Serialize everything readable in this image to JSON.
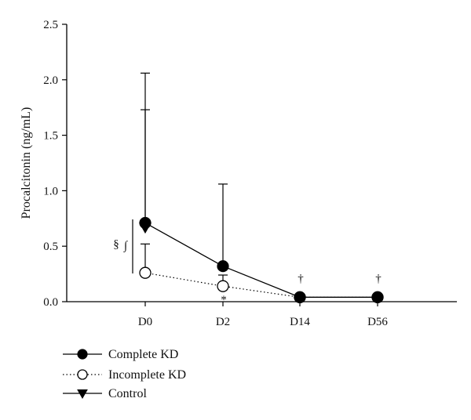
{
  "chart_data": {
    "type": "line",
    "title": "",
    "xlabel": "",
    "ylabel": "Procalcitonin (ng/mL)",
    "categories": [
      "D0",
      "D2",
      "D14",
      "D56"
    ],
    "ylim": [
      0,
      2.5
    ],
    "yticks": [
      "0.0",
      "0.5",
      "1.0",
      "1.5",
      "2.0",
      "2.5"
    ],
    "legend_position": "bottom-left",
    "grid": false,
    "series": [
      {
        "name": "Complete KD",
        "marker": "filled-circle",
        "line_style": "solid",
        "color": "#000000",
        "points": [
          {
            "category": "D0",
            "value": 0.71,
            "error_upper": 2.06
          },
          {
            "category": "D2",
            "value": 0.32,
            "error_upper": 1.06
          },
          {
            "category": "D14",
            "value": 0.04
          },
          {
            "category": "D56",
            "value": 0.04
          }
        ]
      },
      {
        "name": "Incomplete KD",
        "marker": "open-circle",
        "line_style": "dotted",
        "color": "#000000",
        "points": [
          {
            "category": "D0",
            "value": 0.26,
            "error_upper": 0.52
          },
          {
            "category": "D2",
            "value": 0.14,
            "error_upper": 0.24
          },
          {
            "category": "D14",
            "value": 0.04
          },
          {
            "category": "D56",
            "value": 0.04
          }
        ]
      },
      {
        "name": "Control",
        "marker": "filled-triangle-down",
        "line_style": "solid",
        "color": "#000000",
        "points": [
          {
            "category": "D0",
            "value": 0.67,
            "error_upper": 1.73
          }
        ]
      }
    ],
    "annotations": [
      {
        "text": "§",
        "category": "D0"
      },
      {
        "text": "∫",
        "category": "D0"
      },
      {
        "text": "*",
        "category": "D2"
      },
      {
        "text": "†",
        "category": "D14"
      },
      {
        "text": "†",
        "category": "D56"
      }
    ]
  }
}
